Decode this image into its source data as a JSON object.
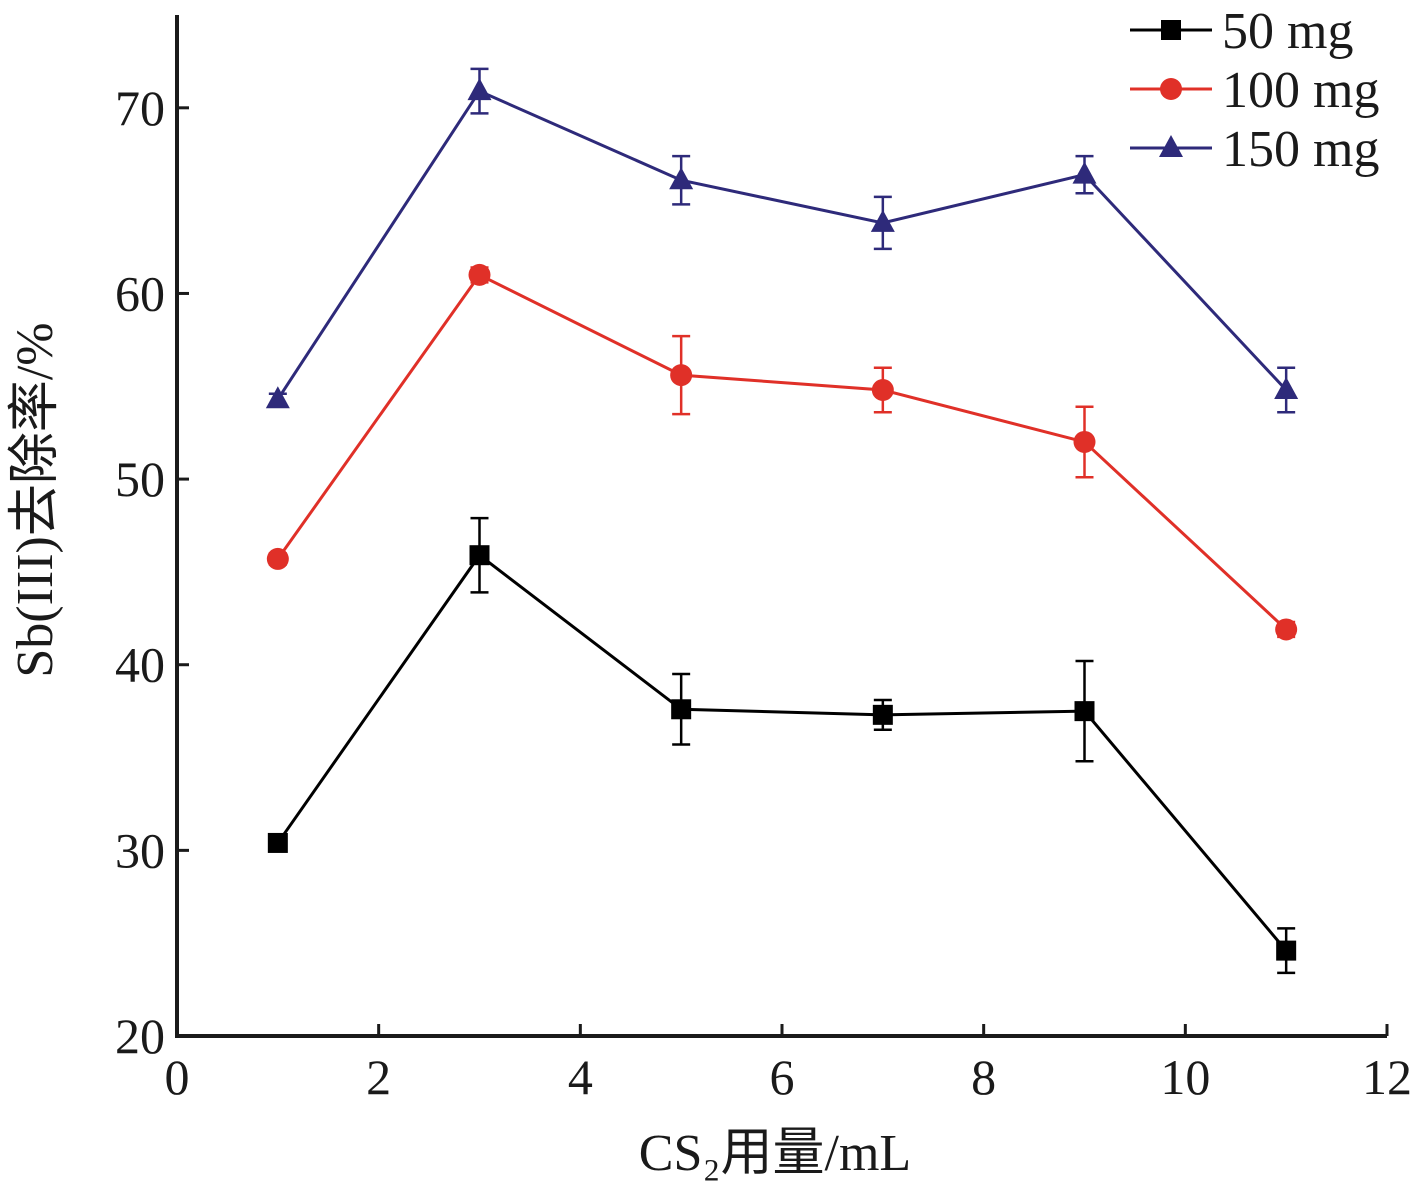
{
  "chart_data": {
    "type": "line",
    "xlabel": "CS₂用量/mL",
    "ylabel": "Sb(III)去除率/%",
    "xlim": [
      0,
      12
    ],
    "ylim": [
      20,
      75
    ],
    "x_ticks": [
      0,
      2,
      4,
      6,
      8,
      10,
      12
    ],
    "y_ticks": [
      20,
      30,
      40,
      50,
      60,
      70
    ],
    "grid": false,
    "legend_position": "top-right",
    "x": [
      1,
      3,
      5,
      7,
      9,
      11
    ],
    "series": [
      {
        "name": "50 mg",
        "color": "#000000",
        "marker": "square",
        "values": [
          30.4,
          45.9,
          37.6,
          37.3,
          37.5,
          24.6
        ],
        "errors": [
          0.3,
          2.0,
          1.9,
          0.8,
          2.7,
          1.2
        ]
      },
      {
        "name": "100 mg",
        "color": "#e03028",
        "marker": "circle",
        "values": [
          45.7,
          61.0,
          55.6,
          54.8,
          52.0,
          41.9
        ],
        "errors": [
          0.3,
          0.4,
          2.1,
          1.2,
          1.9,
          0.4
        ]
      },
      {
        "name": "150 mg",
        "color": "#2e2a7a",
        "marker": "triangle",
        "values": [
          54.3,
          70.9,
          66.1,
          63.8,
          66.4,
          54.8
        ],
        "errors": [
          0.3,
          1.2,
          1.3,
          1.4,
          1.0,
          1.2
        ]
      }
    ]
  }
}
